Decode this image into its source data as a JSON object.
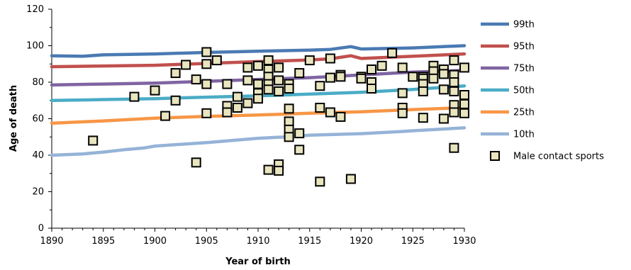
{
  "chart_data": {
    "type": "line",
    "xlabel": "Year of birth",
    "ylabel": "Age of death",
    "xlim": [
      1890,
      1930
    ],
    "ylim": [
      0,
      120
    ],
    "x_ticks": [
      1890,
      1895,
      1900,
      1905,
      1910,
      1915,
      1920,
      1925,
      1930
    ],
    "y_ticks": [
      0,
      20,
      40,
      60,
      80,
      100,
      120
    ],
    "grid": false,
    "legend_position": "right",
    "series": [
      {
        "name": "99th",
        "color": "#4a7ab3",
        "x": [
          1890,
          1893,
          1895,
          1900,
          1905,
          1910,
          1915,
          1917,
          1919,
          1920,
          1925,
          1930
        ],
        "y": [
          94.5,
          94.2,
          95,
          95.5,
          96.3,
          97,
          97.6,
          98,
          99.5,
          98.2,
          98.8,
          100
        ]
      },
      {
        "name": "95th",
        "color": "#c0504d",
        "x": [
          1890,
          1895,
          1900,
          1905,
          1910,
          1915,
          1917,
          1919,
          1920,
          1925,
          1930
        ],
        "y": [
          88.5,
          88.9,
          89.3,
          90.3,
          91.3,
          92.2,
          92.8,
          94.5,
          93,
          94.2,
          95.5
        ]
      },
      {
        "name": "75th",
        "color": "#8064a2",
        "x": [
          1890,
          1895,
          1900,
          1905,
          1910,
          1915,
          1920,
          1925,
          1930
        ],
        "y": [
          78.5,
          79,
          79.5,
          80.5,
          81.5,
          82.5,
          84,
          85.5,
          86.5
        ]
      },
      {
        "name": "50th",
        "color": "#4bacc6",
        "x": [
          1890,
          1895,
          1900,
          1905,
          1910,
          1915,
          1920,
          1925,
          1930
        ],
        "y": [
          70,
          70.5,
          71,
          71.8,
          72.5,
          73.5,
          74.5,
          76,
          78
        ]
      },
      {
        "name": "25th",
        "color": "#f79646",
        "x": [
          1890,
          1895,
          1900,
          1905,
          1910,
          1915,
          1920,
          1925,
          1930
        ],
        "y": [
          57.5,
          58.8,
          60.3,
          61.3,
          62,
          63,
          63.8,
          65,
          66
        ]
      },
      {
        "name": "10th",
        "color": "#95b3d7",
        "x": [
          1890,
          1893,
          1895,
          1897,
          1899,
          1900,
          1905,
          1910,
          1913,
          1915,
          1920,
          1924,
          1925,
          1930
        ],
        "y": [
          40,
          40.7,
          41.7,
          43,
          44,
          45,
          46.9,
          49.3,
          50.1,
          51,
          51.8,
          53,
          53.4,
          55
        ]
      }
    ],
    "scatter_series": {
      "name": "Male contact sports",
      "marker_fill": "#e8e5bf",
      "marker_stroke": "#000000",
      "points": [
        [
          1894,
          48
        ],
        [
          1898,
          72
        ],
        [
          1900,
          75.5
        ],
        [
          1901,
          61.5
        ],
        [
          1902,
          85
        ],
        [
          1902,
          70
        ],
        [
          1903,
          89.5
        ],
        [
          1904,
          81.5
        ],
        [
          1904,
          36
        ],
        [
          1905,
          96.5
        ],
        [
          1905,
          90
        ],
        [
          1905,
          79
        ],
        [
          1905,
          63
        ],
        [
          1906,
          92
        ],
        [
          1907,
          79
        ],
        [
          1907,
          67
        ],
        [
          1907,
          63.5
        ],
        [
          1908,
          72
        ],
        [
          1908,
          66
        ],
        [
          1909,
          88
        ],
        [
          1909,
          81
        ],
        [
          1909,
          68.5
        ],
        [
          1910,
          89
        ],
        [
          1910,
          79
        ],
        [
          1910,
          74
        ],
        [
          1910,
          71
        ],
        [
          1911,
          92
        ],
        [
          1911,
          87
        ],
        [
          1911,
          83
        ],
        [
          1911,
          79
        ],
        [
          1911,
          76
        ],
        [
          1911,
          32
        ],
        [
          1912,
          88
        ],
        [
          1912,
          81
        ],
        [
          1912,
          75
        ],
        [
          1912,
          35
        ],
        [
          1912,
          31.5
        ],
        [
          1913,
          79
        ],
        [
          1913,
          76.5
        ],
        [
          1913,
          65.5
        ],
        [
          1913,
          58.5
        ],
        [
          1913,
          54
        ],
        [
          1913,
          50
        ],
        [
          1914,
          85
        ],
        [
          1914,
          52
        ],
        [
          1914,
          43
        ],
        [
          1915,
          92
        ],
        [
          1916,
          78
        ],
        [
          1916,
          66
        ],
        [
          1916,
          25.5
        ],
        [
          1917,
          93
        ],
        [
          1917,
          82.5
        ],
        [
          1917,
          63.5
        ],
        [
          1918,
          84
        ],
        [
          1918,
          83
        ],
        [
          1918,
          61
        ],
        [
          1919,
          27
        ],
        [
          1920,
          83
        ],
        [
          1920,
          82
        ],
        [
          1921,
          87
        ],
        [
          1921,
          80
        ],
        [
          1921,
          76.5
        ],
        [
          1922,
          89
        ],
        [
          1923,
          96
        ],
        [
          1924,
          88
        ],
        [
          1924,
          74
        ],
        [
          1924,
          66
        ],
        [
          1924,
          63
        ],
        [
          1925,
          83
        ],
        [
          1926,
          83
        ],
        [
          1926,
          82
        ],
        [
          1926,
          79
        ],
        [
          1926,
          75
        ],
        [
          1926,
          60.5
        ],
        [
          1927,
          89
        ],
        [
          1927,
          86
        ],
        [
          1927,
          82
        ],
        [
          1928,
          87
        ],
        [
          1928,
          84.5
        ],
        [
          1928,
          76
        ],
        [
          1928,
          60
        ],
        [
          1929,
          92
        ],
        [
          1929,
          84
        ],
        [
          1929,
          80
        ],
        [
          1929,
          75
        ],
        [
          1929,
          67.5
        ],
        [
          1929,
          63.5
        ],
        [
          1929,
          44
        ],
        [
          1930,
          88
        ],
        [
          1930,
          73
        ],
        [
          1930,
          68
        ],
        [
          1930,
          63
        ]
      ]
    }
  }
}
